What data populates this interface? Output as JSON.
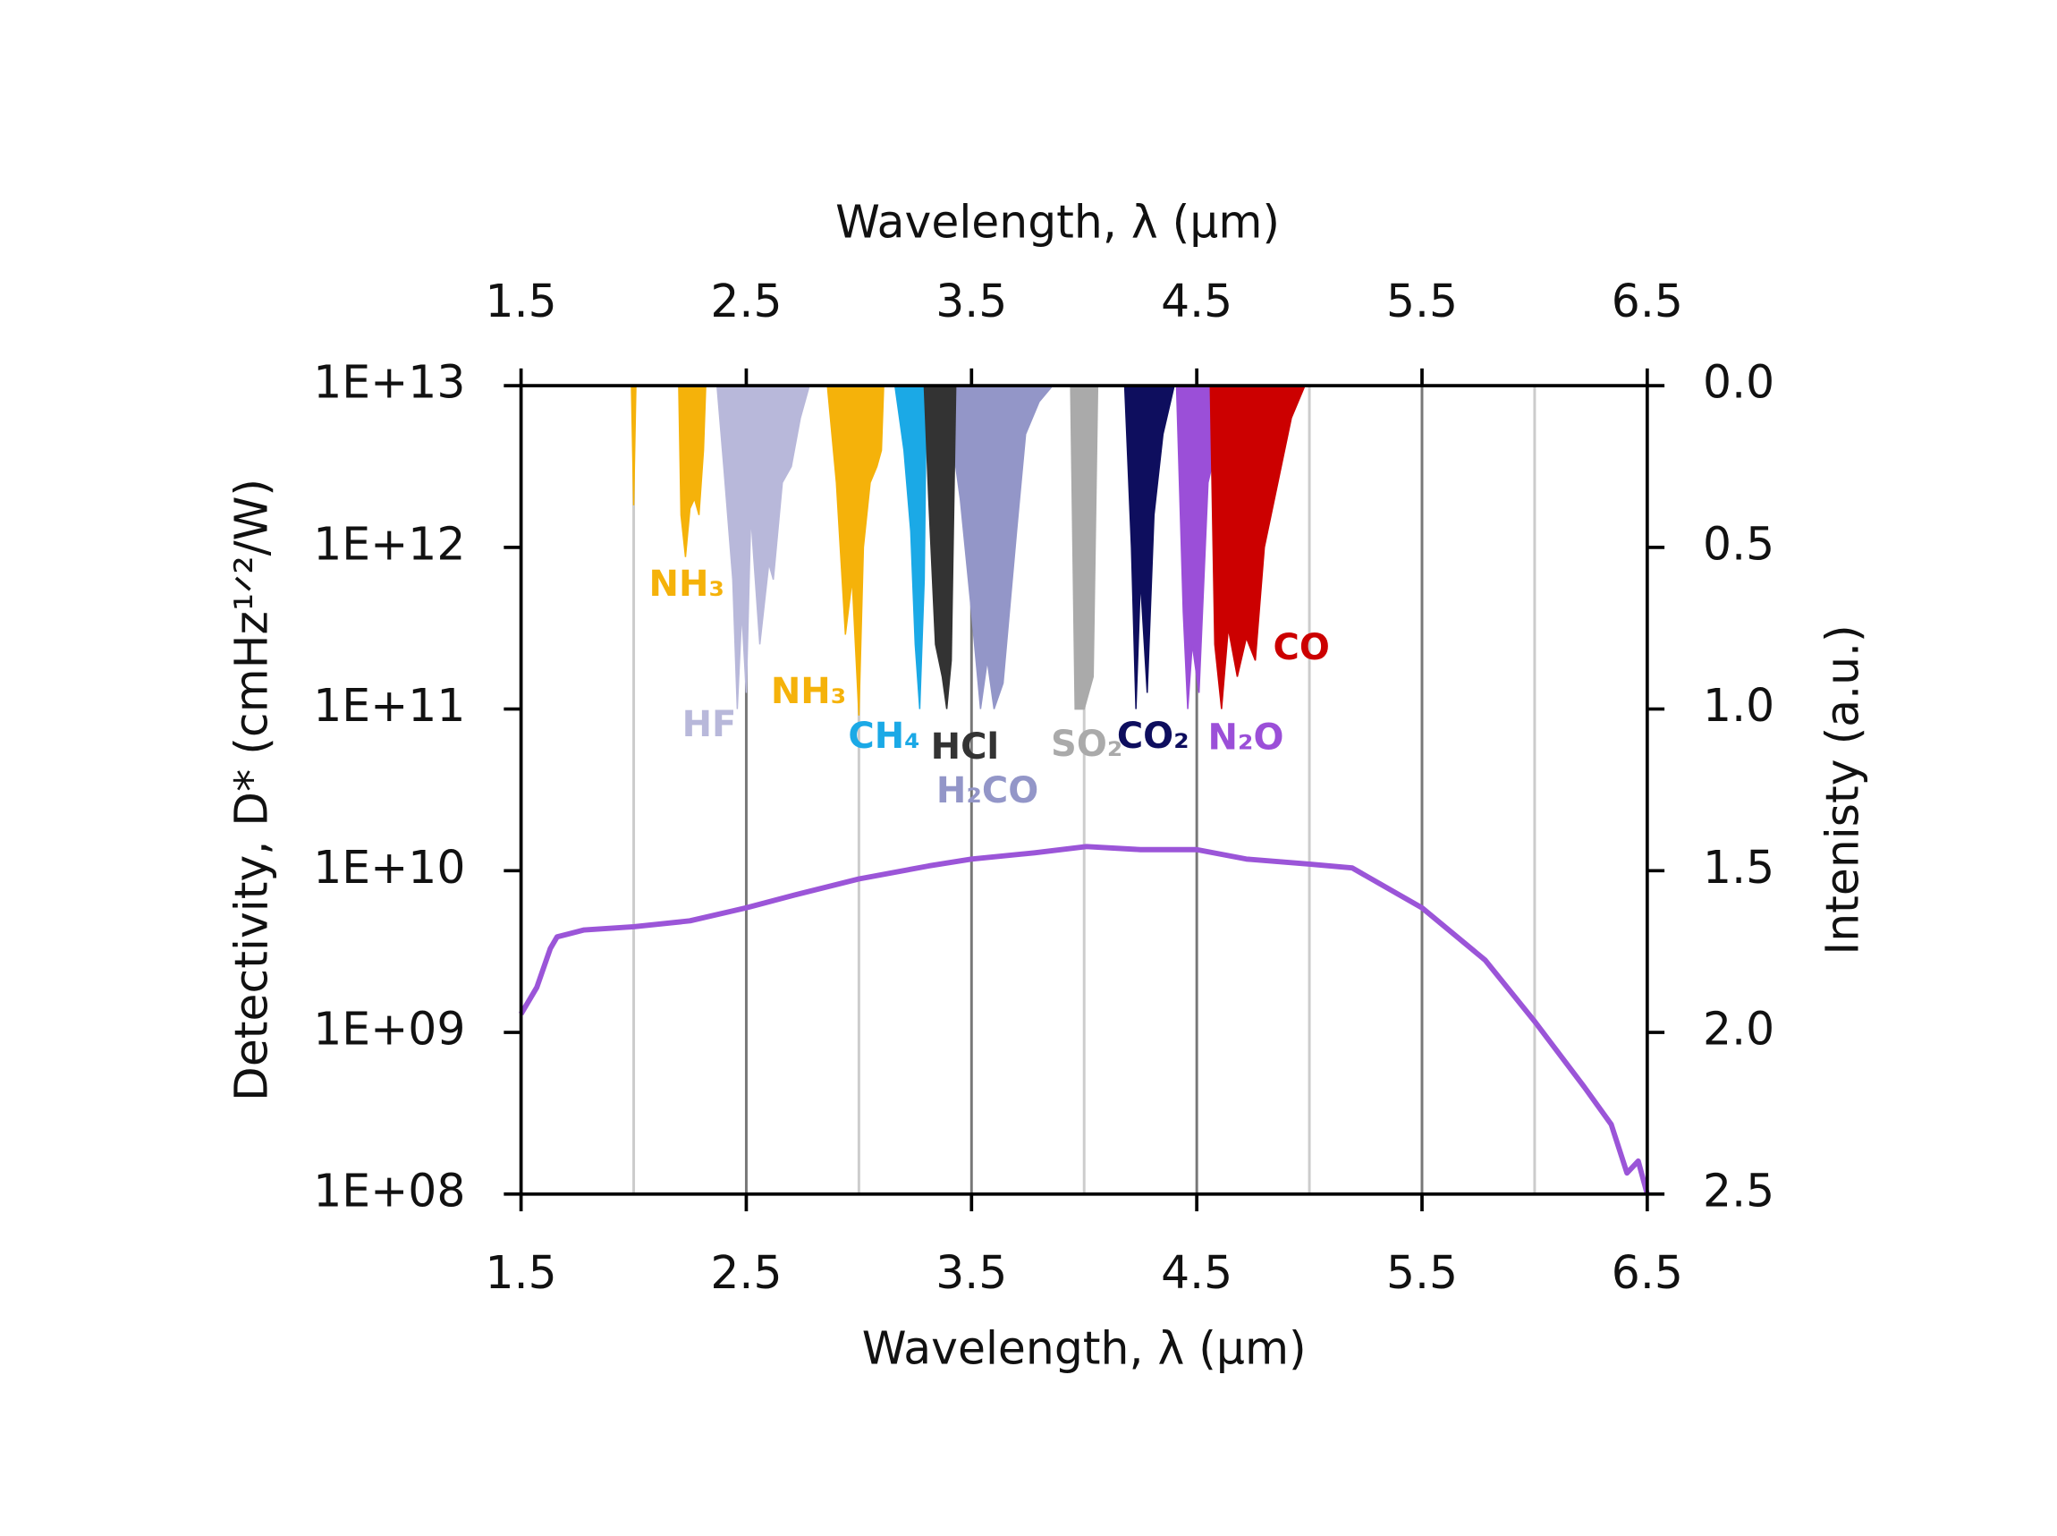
{
  "chart_data": {
    "type": "line",
    "xlabel": "Wavelength, λ (μm)",
    "x2label": "Wavelength, λ (μm)",
    "ylabel": "Detectivity, D* (cmHz¹ᐟ²/W)",
    "y2label": "Intenisty (a.u.)",
    "xlim": [
      1.5,
      6.5
    ],
    "xticks": [
      1.5,
      2.5,
      3.5,
      4.5,
      5.5,
      6.5
    ],
    "x2ticks": [
      1.5,
      2.5,
      3.5,
      4.5,
      5.5,
      6.5
    ],
    "xminorticks": [
      2,
      3,
      4,
      5,
      6
    ],
    "ylim": [
      100000000,
      10000000000000
    ],
    "yscale": "log",
    "yticks": [
      {
        "value": 100000000,
        "label": "1E+08"
      },
      {
        "value": 1000000000,
        "label": "1E+09"
      },
      {
        "value": 10000000000,
        "label": "1E+10"
      },
      {
        "value": 100000000000,
        "label": "1E+11"
      },
      {
        "value": 1000000000000,
        "label": "1E+12"
      },
      {
        "value": 10000000000000,
        "label": "1E+13"
      }
    ],
    "y2lim": [
      2.5,
      0
    ],
    "y2ticks": [
      {
        "value": 0,
        "label": "0.0"
      },
      0.5,
      {
        "value": 1,
        "label": "1.0"
      },
      1.5,
      {
        "value": 2,
        "label": "2.0"
      },
      2.5
    ],
    "grid": true,
    "series": [
      {
        "color": "#9b55d8",
        "x": [
          1.5,
          1.57,
          1.63,
          1.66,
          1.78,
          2.0,
          2.25,
          2.5,
          2.72,
          3.0,
          3.31,
          3.5,
          3.78,
          4.01,
          4.25,
          4.5,
          4.72,
          5.0,
          5.19,
          5.5,
          5.78,
          6.0,
          6.22,
          6.34,
          6.41,
          6.46,
          6.5
        ],
        "values": [
          1300000000,
          1900000000,
          3300000000,
          3900000000,
          4300000000,
          4500000000,
          4900000000,
          5900000000,
          7100000000,
          8900000000,
          10700000000,
          11800000000,
          12900000000,
          14100000000,
          13500000000,
          13500000000,
          11800000000,
          11000000000,
          10400000000,
          5900000000,
          2800000000,
          1170000000,
          460000000,
          270000000,
          135000000,
          160000000,
          100000000
        ]
      },
      {
        "name": "NH₃",
        "color": "#f5b20a",
        "axis": "y2",
        "x": [
          1.99,
          2.0,
          2.01,
          2.2,
          2.21,
          2.23,
          2.25,
          2.27,
          2.29,
          2.31,
          2.32
        ],
        "values": [
          0,
          0.37,
          0,
          0,
          0.4,
          0.53,
          0.38,
          0.35,
          0.4,
          0.2,
          0
        ]
      },
      {
        "name": "HF",
        "color": "#b8b8da",
        "axis": "y2",
        "x": [
          2.37,
          2.4,
          2.44,
          2.46,
          2.48,
          2.5,
          2.52,
          2.56,
          2.6,
          2.62,
          2.66,
          2.7,
          2.74,
          2.78
        ],
        "values": [
          0,
          0.25,
          0.6,
          1.0,
          0.7,
          0.95,
          0.4,
          0.8,
          0.55,
          0.6,
          0.3,
          0.25,
          0.1,
          0
        ]
      },
      {
        "name": "NH₃",
        "color": "#f5b20a",
        "axis": "y2",
        "x": [
          2.86,
          2.9,
          2.94,
          2.97,
          3.0,
          3.02,
          3.05,
          3.08,
          3.1,
          3.11
        ],
        "values": [
          0,
          0.3,
          0.77,
          0.6,
          1.02,
          0.5,
          0.3,
          0.25,
          0.2,
          0
        ]
      },
      {
        "name": "H₂CO",
        "color": "#9396c8",
        "axis": "y2",
        "x": [
          3.3,
          3.4,
          3.45,
          3.5,
          3.54,
          3.57,
          3.6,
          3.64,
          3.7,
          3.74,
          3.8,
          3.86
        ],
        "values": [
          0,
          0.1,
          0.35,
          0.7,
          1.0,
          0.85,
          1.0,
          0.92,
          0.45,
          0.15,
          0.05,
          0
        ]
      },
      {
        "name": "CH₄",
        "color": "#1ba9e6",
        "axis": "y2",
        "x": [
          3.16,
          3.2,
          3.23,
          3.25,
          3.27,
          3.29,
          3.3
        ],
        "values": [
          0,
          0.2,
          0.45,
          0.8,
          1.0,
          0.6,
          0
        ]
      },
      {
        "name": "HCl",
        "color": "#333333",
        "axis": "y2",
        "x": [
          3.29,
          3.31,
          3.34,
          3.37,
          3.39,
          3.41,
          3.43
        ],
        "values": [
          0,
          0.35,
          0.8,
          0.9,
          1.0,
          0.85,
          0
        ]
      },
      {
        "name": "SO₂",
        "color": "#aaaaaa",
        "axis": "y2",
        "x": [
          3.94,
          3.96,
          4.0,
          4.04,
          4.06
        ],
        "values": [
          0,
          1.0,
          1.0,
          0.9,
          0
        ]
      },
      {
        "name": "CO₂",
        "color": "#0e0e5e",
        "axis": "y2",
        "x": [
          4.18,
          4.21,
          4.23,
          4.25,
          4.28,
          4.31,
          4.35,
          4.4
        ],
        "values": [
          0,
          0.5,
          1.0,
          0.6,
          0.95,
          0.4,
          0.15,
          0
        ]
      },
      {
        "name": "N₂O",
        "color": "#9b4fd8",
        "axis": "y2",
        "x": [
          4.41,
          4.44,
          4.46,
          4.48,
          4.51,
          4.55,
          4.6,
          4.7
        ],
        "values": [
          0,
          0.7,
          1.0,
          0.8,
          0.95,
          0.3,
          0.15,
          0
        ]
      },
      {
        "name": "CO",
        "color": "#cc0000",
        "axis": "y2",
        "x": [
          4.56,
          4.58,
          4.61,
          4.64,
          4.68,
          4.72,
          4.76,
          4.8,
          4.86,
          4.92,
          4.98
        ],
        "values": [
          0,
          0.8,
          1.0,
          0.75,
          0.9,
          0.78,
          0.85,
          0.5,
          0.3,
          0.1,
          0
        ]
      }
    ]
  }
}
